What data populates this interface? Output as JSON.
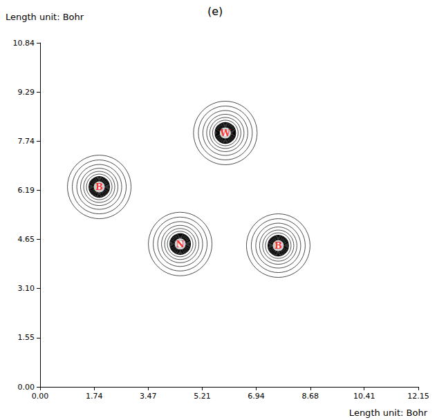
{
  "chart_data": {
    "type": "contour",
    "title": "(e)",
    "x_label": "Length unit: Bohr",
    "y_label": "Length unit: Bohr",
    "xlim": [
      0,
      12.15
    ],
    "xticks": [
      {
        "value": 0,
        "label": "0.00"
      },
      {
        "value": 1.74,
        "label": "1.74"
      },
      {
        "value": 3.47,
        "label": "3.47"
      },
      {
        "value": 5.21,
        "label": "5.21"
      },
      {
        "value": 6.94,
        "label": "6.94"
      },
      {
        "value": 8.68,
        "label": "8.68"
      },
      {
        "value": 10.41,
        "label": "10.41"
      },
      {
        "value": 12.15,
        "label": "12.15"
      }
    ],
    "ylim": [
      0,
      10.84
    ],
    "yticks": [
      {
        "value": 0,
        "label": "0.00"
      },
      {
        "value": 1.55,
        "label": "1.55"
      },
      {
        "value": 3.1,
        "label": "3.10"
      },
      {
        "value": 4.65,
        "label": "4.65"
      },
      {
        "value": 6.19,
        "label": "6.19"
      },
      {
        "value": 7.74,
        "label": "7.74"
      },
      {
        "value": 9.29,
        "label": "9.29"
      },
      {
        "value": 10.84,
        "label": "10.84"
      }
    ],
    "atoms": [
      {
        "label": "B",
        "x": 1.9,
        "y": 6.3
      },
      {
        "label": "N",
        "x": 4.5,
        "y": 4.5
      },
      {
        "label": "B",
        "x": 7.65,
        "y": 4.45
      },
      {
        "label": "W",
        "x": 5.95,
        "y": 8.0
      }
    ],
    "color": "#ff0000",
    "grid": false
  }
}
